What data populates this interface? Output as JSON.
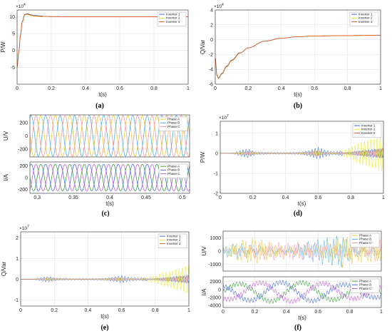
{
  "colors": {
    "inverter_1": "#1f5fd6",
    "inverter_2": "#e8e81a",
    "inverter_3": "#e0502a",
    "phase_a": "#e8c020",
    "phase_b": "#3aa6e8",
    "phase_c": "#ff8a8a",
    "current_a": "#2a9a2a",
    "current_b": "#3a5fe0",
    "current_c": "#c050e0",
    "grid": "#dcdcdc",
    "axis": "#262626"
  },
  "chart_data": [
    {
      "id": "a",
      "caption": "(a)",
      "type": "line",
      "xlabel": "t(s)",
      "ylabel": "P/W",
      "multiplier": "×10^4",
      "xlim": [
        0,
        1
      ],
      "ylim": [
        -10,
        12
      ],
      "xticks": [
        "0",
        "0.2",
        "0.4",
        "0.6",
        "0.8",
        "1"
      ],
      "yticks": [
        "-5",
        "0",
        "5",
        "10"
      ],
      "grid": true,
      "legend_position": "top-right",
      "series": [
        {
          "name": "Inverter 1",
          "x": [
            0,
            0.01,
            0.02,
            0.03,
            0.045,
            0.06,
            0.08,
            0.1,
            0.15,
            0.2,
            0.3,
            0.5,
            0.7,
            1.0
          ],
          "y": [
            -5,
            -0.5,
            4.5,
            8.5,
            10.6,
            10.8,
            10.5,
            10.25,
            10.1,
            10.05,
            10.0,
            10.0,
            10.0,
            10.0
          ]
        },
        {
          "name": "Inverter 2",
          "x": [
            0,
            0.01,
            0.02,
            0.03,
            0.045,
            0.06,
            0.08,
            0.1,
            0.15,
            0.2,
            0.3,
            0.5,
            0.7,
            1.0
          ],
          "y": [
            -5,
            -0.5,
            4.5,
            8.5,
            10.6,
            10.8,
            10.5,
            10.25,
            10.1,
            10.05,
            10.0,
            10.0,
            10.0,
            10.0
          ]
        },
        {
          "name": "Inverter 3",
          "x": [
            0,
            0.01,
            0.02,
            0.03,
            0.045,
            0.06,
            0.08,
            0.1,
            0.15,
            0.2,
            0.3,
            0.5,
            0.7,
            1.0
          ],
          "y": [
            -5,
            -0.5,
            4.5,
            8.5,
            10.6,
            10.8,
            10.5,
            10.25,
            10.1,
            10.05,
            10.0,
            10.0,
            10.0,
            10.0
          ]
        }
      ]
    },
    {
      "id": "b",
      "caption": "(b)",
      "type": "line",
      "xlabel": "t(s)",
      "ylabel": "Q/Var",
      "multiplier": "×10^4",
      "xlim": [
        0,
        1
      ],
      "ylim": [
        -6,
        4
      ],
      "xticks": [
        "0",
        "0.2",
        "0.4",
        "0.6",
        "0.8",
        "1"
      ],
      "yticks": [
        "-6",
        "-4",
        "-2",
        "0",
        "2",
        "4"
      ],
      "grid": true,
      "legend_position": "top-right",
      "series": [
        {
          "name": "Inverter 1",
          "x": [
            0,
            0.01,
            0.02,
            0.04,
            0.07,
            0.1,
            0.15,
            0.2,
            0.3,
            0.4,
            0.5,
            0.6,
            0.8,
            1.0
          ],
          "y": [
            -2.5,
            -4.8,
            -5.2,
            -4.6,
            -3.6,
            -2.8,
            -1.8,
            -1.1,
            -0.2,
            0.2,
            0.4,
            0.5,
            0.55,
            0.6
          ]
        },
        {
          "name": "Inverter 2",
          "x": [
            0,
            0.01,
            0.02,
            0.04,
            0.07,
            0.1,
            0.15,
            0.2,
            0.3,
            0.4,
            0.5,
            0.6,
            0.8,
            1.0
          ],
          "y": [
            -2.5,
            -4.8,
            -5.2,
            -4.6,
            -3.6,
            -2.8,
            -1.8,
            -1.1,
            -0.2,
            0.2,
            0.4,
            0.5,
            0.55,
            0.6
          ]
        },
        {
          "name": "Inverter 3",
          "x": [
            0,
            0.01,
            0.02,
            0.04,
            0.07,
            0.1,
            0.15,
            0.2,
            0.3,
            0.4,
            0.5,
            0.6,
            0.8,
            1.0
          ],
          "y": [
            -2.5,
            -4.8,
            -5.2,
            -4.6,
            -3.6,
            -2.8,
            -1.8,
            -1.1,
            -0.2,
            0.2,
            0.4,
            0.5,
            0.55,
            0.6
          ]
        }
      ]
    },
    {
      "id": "c-top",
      "caption": "(c)",
      "type": "line",
      "xlabel": "",
      "ylabel": "U/V",
      "multiplier": "",
      "xlim": [
        0.29,
        0.51
      ],
      "ylim": [
        -320,
        320
      ],
      "xticks": [],
      "yticks": [
        "-200",
        "0",
        "200"
      ],
      "grid": true,
      "legend_position": "top-right",
      "waveform": {
        "shape": "sine",
        "amplitude": 311,
        "frequency_hz": 50,
        "phase_shifts_deg": [
          0,
          -120,
          120
        ]
      },
      "series": [
        {
          "name": "Phase A"
        },
        {
          "name": "Phase B"
        },
        {
          "name": "Phase C"
        }
      ]
    },
    {
      "id": "c-bottom",
      "caption": "(c)",
      "type": "line",
      "xlabel": "t(s)",
      "ylabel": "I/A",
      "multiplier": "",
      "xlim": [
        0.29,
        0.51
      ],
      "ylim": [
        -270,
        270
      ],
      "xticks": [
        "0.3",
        "0.35",
        "0.4",
        "0.45",
        "0.5"
      ],
      "yticks": [
        "-200",
        "0",
        "200"
      ],
      "grid": true,
      "legend_position": "top-right",
      "waveform": {
        "shape": "sine",
        "amplitude": 230,
        "frequency_hz": 50,
        "phase_shifts_deg": [
          0,
          -120,
          120
        ]
      },
      "series": [
        {
          "name": "Phase A"
        },
        {
          "name": "Phase B"
        },
        {
          "name": "Phase C"
        }
      ]
    },
    {
      "id": "d",
      "caption": "(d)",
      "type": "line",
      "xlabel": "t(s)",
      "ylabel": "P/W",
      "multiplier": "×10^7",
      "xlim": [
        0,
        1
      ],
      "ylim": [
        -2,
        1.6
      ],
      "xticks": [
        "0",
        "0.2",
        "0.4",
        "0.6",
        "0.8",
        "1"
      ],
      "yticks": [
        "-2",
        "-1",
        "0",
        "1"
      ],
      "grid": true,
      "legend_position": "top-right",
      "oscillation_envelope": {
        "t": [
          0,
          0.08,
          0.12,
          0.17,
          0.22,
          0.3,
          0.4,
          0.5,
          0.55,
          0.6,
          0.65,
          0.7,
          0.8,
          0.9,
          1.0
        ],
        "amplitude": [
          0,
          0.02,
          0.15,
          0.3,
          0.1,
          0.05,
          0.05,
          0.1,
          0.18,
          0.3,
          0.15,
          0.1,
          0.3,
          0.7,
          1.3
        ]
      },
      "series": [
        {
          "name": "Inverter 1"
        },
        {
          "name": "Inverter 2"
        },
        {
          "name": "Inverter 3"
        }
      ]
    },
    {
      "id": "e",
      "caption": "(e)",
      "type": "line",
      "xlabel": "t(s)",
      "ylabel": "Q/Var",
      "multiplier": "×10^7",
      "xlim": [
        0,
        1
      ],
      "ylim": [
        -1.3,
        2.3
      ],
      "xticks": [
        "0",
        "0.2",
        "0.4",
        "0.6",
        "0.8",
        "1"
      ],
      "yticks": [
        "-1",
        "0",
        "1",
        "2"
      ],
      "grid": true,
      "legend_position": "top-right",
      "oscillation_envelope": {
        "t": [
          0,
          0.08,
          0.12,
          0.17,
          0.22,
          0.3,
          0.4,
          0.5,
          0.55,
          0.6,
          0.65,
          0.7,
          0.8,
          0.9,
          1.0
        ],
        "amplitude": [
          0,
          0.02,
          0.1,
          0.18,
          0.08,
          0.04,
          0.04,
          0.08,
          0.12,
          0.18,
          0.1,
          0.08,
          0.18,
          0.45,
          1.0
        ]
      },
      "series": [
        {
          "name": "Inverter 1"
        },
        {
          "name": "Inverter 2"
        },
        {
          "name": "Inverter 3"
        }
      ]
    },
    {
      "id": "f-top",
      "caption": "(f)",
      "type": "line",
      "xlabel": "",
      "ylabel": "U/V",
      "multiplier": "",
      "xlim": [
        0,
        1
      ],
      "ylim": [
        -1500,
        1500
      ],
      "xticks": [],
      "yticks": [
        "-1000",
        "0",
        "1000"
      ],
      "grid": true,
      "legend_position": "top-right",
      "oscillation_envelope": {
        "t": [
          0,
          0.1,
          0.2,
          0.3,
          0.4,
          0.5,
          0.6,
          0.7,
          0.75,
          0.8,
          0.9,
          1.0
        ],
        "amplitude": [
          300,
          650,
          750,
          600,
          450,
          600,
          700,
          900,
          1200,
          800,
          650,
          800
        ]
      },
      "series": [
        {
          "name": "Phase A"
        },
        {
          "name": "Phase B"
        },
        {
          "name": "Phase C"
        }
      ]
    },
    {
      "id": "f-bottom",
      "caption": "(f)",
      "type": "line",
      "xlabel": "t(s)",
      "ylabel": "I/A",
      "multiplier": "",
      "xlim": [
        0,
        1
      ],
      "ylim": [
        -4500,
        3200
      ],
      "xticks": [
        "0",
        "0.2",
        "0.4",
        "0.6",
        "0.8",
        "1"
      ],
      "yticks": [
        "-4000",
        "-2000",
        "0",
        "2000"
      ],
      "grid": true,
      "legend_position": "top-right",
      "envelope_peak_A": 3000,
      "series": [
        {
          "name": "Phase A"
        },
        {
          "name": "Phase B"
        },
        {
          "name": "Phase C"
        }
      ]
    }
  ]
}
